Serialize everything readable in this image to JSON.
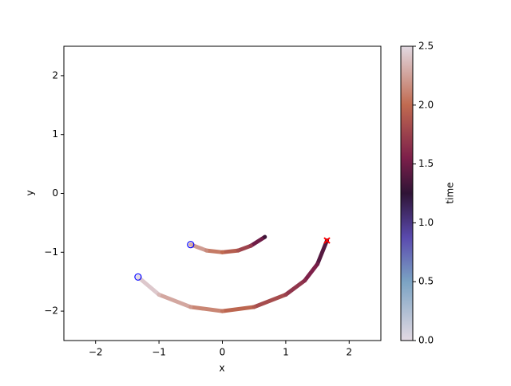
{
  "chart_data": {
    "type": "trajectory",
    "xlabel": "x",
    "ylabel": "y",
    "colorbar_label": "time",
    "xlim": [
      -2.5,
      2.5
    ],
    "ylim": [
      -2.5,
      2.5
    ],
    "xticks": [
      {
        "value": -2,
        "label": "−2"
      },
      {
        "value": -1,
        "label": "−1"
      },
      0,
      1,
      2
    ],
    "yticks": [
      {
        "value": -2,
        "label": "−2"
      },
      {
        "value": -1,
        "label": "−1"
      },
      0,
      1,
      2
    ],
    "clim": [
      0,
      2.5
    ],
    "cticks": [
      {
        "value": 0,
        "label": "0.0"
      },
      0.5,
      {
        "value": 1,
        "label": "1.0"
      },
      1.5,
      {
        "value": 2,
        "label": "2.0"
      },
      2.5
    ],
    "series": [
      {
        "x": [
          -1.33,
          -1.0,
          -0.5,
          0,
          0.5,
          1.0,
          1.3,
          1.5,
          1.65
        ],
        "y": [
          -1.42,
          -1.72,
          -1.93,
          -2.0,
          -1.93,
          -1.72,
          -1.48,
          -1.2,
          -0.8
        ],
        "time": [
          2.5,
          2.35,
          2.2,
          2.05,
          1.9,
          1.75,
          1.62,
          1.5,
          1.3
        ]
      },
      {
        "x": [
          -0.5,
          -0.25,
          0,
          0.25,
          0.45,
          0.67
        ],
        "y": [
          -0.87,
          -0.97,
          -1.0,
          -0.97,
          -0.89,
          -0.74
        ],
        "time": [
          2.3,
          2.15,
          2.0,
          1.85,
          1.7,
          1.3
        ]
      }
    ],
    "markers": [
      {
        "x": -1.33,
        "y": -1.42,
        "marker": "o",
        "color": "#0000ff"
      },
      {
        "x": -0.5,
        "y": -0.87,
        "marker": "o",
        "color": "#0000ff"
      },
      {
        "x": 1.65,
        "y": -0.8,
        "marker": "x",
        "color": "#ff0000"
      }
    ]
  }
}
